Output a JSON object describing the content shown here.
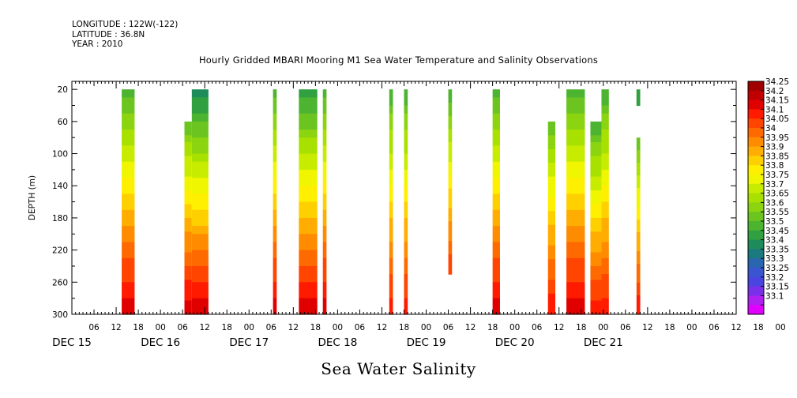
{
  "header": {
    "lines": [
      "LONGITUDE : 122W(-122)",
      "LATITUDE : 36.8N",
      "YEAR : 2010"
    ]
  },
  "chart_data": {
    "type": "heatmap",
    "title": "Hourly Gridded MBARI Mooring M1 Sea Water Temperature and Salinity Observations",
    "xlabel": "Sea Water Salinity",
    "ylabel": "DEPTH (m)",
    "x_unit": "hours from DEC 15 00:00 (2010)",
    "xlim": [
      -12,
      168
    ],
    "ylim": [
      300,
      10
    ],
    "y_ticks": [
      20,
      60,
      100,
      140,
      180,
      220,
      260,
      300
    ],
    "x_hour_labels": [
      "06",
      "12",
      "18",
      "00",
      "06",
      "12",
      "18",
      "00",
      "06",
      "12",
      "18",
      "00",
      "06",
      "12",
      "18",
      "00",
      "06",
      "12",
      "18",
      "00",
      "06",
      "12",
      "18",
      "00",
      "06",
      "12",
      "18",
      "00",
      "06",
      "12",
      "18",
      "00"
    ],
    "x_day_labels": [
      "DEC 15",
      "DEC 16",
      "DEC 17",
      "DEC 18",
      "DEC 19",
      "DEC 20",
      "DEC 21"
    ],
    "colorbar": {
      "levels": [
        "34.25",
        "34.2",
        "34.15",
        "34.1",
        "34.05",
        "34",
        "33.95",
        "33.9",
        "33.85",
        "33.8",
        "33.75",
        "33.7",
        "33.65",
        "33.6",
        "33.55",
        "33.5",
        "33.45",
        "33.4",
        "33.35",
        "33.3",
        "33.25",
        "33.2",
        "33.15",
        "33.1"
      ],
      "colors": [
        "#a00000",
        "#c00000",
        "#e00000",
        "#ff1a00",
        "#ff4500",
        "#ff6a00",
        "#ff8c00",
        "#ffad00",
        "#ffd000",
        "#ffef00",
        "#f0f500",
        "#c8ec00",
        "#a8e000",
        "#8cd410",
        "#6cc420",
        "#4cb430",
        "#30a040",
        "#1e8c5a",
        "#1a7a80",
        "#2a66b0",
        "#3a55d0",
        "#4a44e0",
        "#7a30e8",
        "#b020f0",
        "#e000ff"
      ]
    },
    "segments": [
      {
        "x": [
          1.5,
          5
        ],
        "depth": [
          20,
          300
        ],
        "top": 33.5,
        "bottom": 34.2
      },
      {
        "x": [
          18.5,
          20.5
        ],
        "depth": [
          60,
          300
        ],
        "top": 33.55,
        "bottom": 34.2
      },
      {
        "x": [
          20.5,
          25
        ],
        "depth": [
          20,
          300
        ],
        "top": 33.4,
        "bottom": 34.2
      },
      {
        "x": [
          42.5,
          43.5
        ],
        "depth": [
          20,
          300
        ],
        "top": 33.5,
        "bottom": 34.2
      },
      {
        "x": [
          49.5,
          54.5
        ],
        "depth": [
          20,
          300
        ],
        "top": 33.45,
        "bottom": 34.2
      },
      {
        "x": [
          56,
          57
        ],
        "depth": [
          20,
          300
        ],
        "top": 33.5,
        "bottom": 34.2
      },
      {
        "x": [
          74,
          75
        ],
        "depth": [
          20,
          300
        ],
        "top": 33.5,
        "bottom": 34.15
      },
      {
        "x": [
          78,
          79
        ],
        "depth": [
          20,
          300
        ],
        "top": 33.5,
        "bottom": 34.15
      },
      {
        "x": [
          90,
          91
        ],
        "depth": [
          20,
          250
        ],
        "top": 33.5,
        "bottom": 34.1
      },
      {
        "x": [
          102,
          104
        ],
        "depth": [
          20,
          300
        ],
        "top": 33.5,
        "bottom": 34.2
      },
      {
        "x": [
          117,
          119
        ],
        "depth": [
          60,
          300
        ],
        "top": 33.55,
        "bottom": 34.15
      },
      {
        "x": [
          122,
          127
        ],
        "depth": [
          20,
          300
        ],
        "top": 33.5,
        "bottom": 34.2
      },
      {
        "x": [
          128.5,
          131.5
        ],
        "depth": [
          60,
          300
        ],
        "top": 33.5,
        "bottom": 34.15
      },
      {
        "x": [
          131.5,
          133.5
        ],
        "depth": [
          20,
          300
        ],
        "top": 33.5,
        "bottom": 34.15
      },
      {
        "x": [
          141,
          142
        ],
        "depth": [
          20,
          40
        ],
        "top": 33.45,
        "bottom": 33.45
      },
      {
        "x": [
          141,
          142
        ],
        "depth": [
          80,
          300
        ],
        "top": 33.55,
        "bottom": 34.15
      }
    ]
  }
}
